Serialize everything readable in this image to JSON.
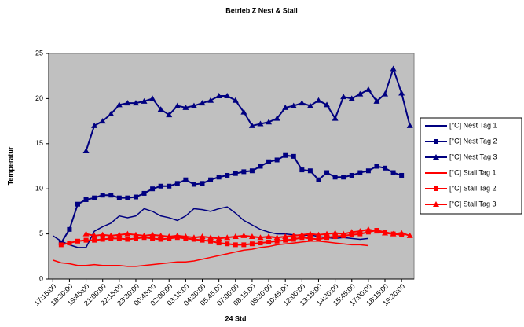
{
  "chart_data": {
    "type": "line",
    "title": "Betrieb Z Nest & Stall",
    "xlabel": "24 Std",
    "ylabel": "Temperatur",
    "categories": [
      "17:15:00",
      null,
      "18:30:00",
      null,
      "19:45:00",
      null,
      "21:00:00",
      null,
      "22:15:00",
      null,
      "23:30:00",
      null,
      "00:45:00",
      null,
      "02:00:00",
      null,
      "03:15:00",
      null,
      "04:30:00",
      null,
      "05:45:00",
      null,
      "07:00:00",
      null,
      "08:15:00",
      null,
      "09:30:00",
      null,
      "10:45:00",
      null,
      "12:00:00",
      null,
      "13:15:00",
      null,
      "14:30:00",
      null,
      "15:45:00",
      null,
      "17:00:00",
      null,
      "18:15:00",
      null,
      "19:30:00",
      null
    ],
    "ylim": [
      0,
      25
    ],
    "yticks": [
      0,
      5,
      10,
      15,
      20,
      25
    ],
    "grid": false,
    "legend": "right",
    "series": [
      {
        "name": "[°C] Nest Tag 1",
        "color": "#000080",
        "marker": "none",
        "values": [
          4.8,
          4.2,
          3.8,
          3.5,
          3.5,
          5.3,
          5.8,
          6.2,
          7.0,
          6.8,
          7.0,
          7.8,
          7.5,
          7.0,
          6.8,
          6.5,
          7.0,
          7.8,
          7.7,
          7.5,
          7.8,
          8.0,
          7.3,
          6.5,
          6.0,
          5.5,
          5.2,
          5.0,
          5.0,
          4.9,
          4.8,
          4.9,
          4.7,
          4.6,
          4.5,
          4.6,
          4.5,
          4.4,
          4.5,
          null,
          null,
          null,
          null,
          null
        ]
      },
      {
        "name": "[°C] Nest Tag 2",
        "color": "#000080",
        "marker": "square",
        "values": [
          null,
          4.0,
          5.5,
          8.3,
          8.8,
          9.0,
          9.3,
          9.3,
          9.0,
          9.0,
          9.1,
          9.5,
          10.0,
          10.3,
          10.3,
          10.6,
          11.0,
          10.5,
          10.6,
          11.0,
          11.3,
          11.5,
          11.7,
          11.9,
          12.0,
          12.5,
          13.0,
          13.2,
          13.7,
          13.6,
          12.1,
          12.0,
          11.0,
          11.8,
          11.3,
          11.3,
          11.5,
          11.8,
          12.0,
          12.5,
          12.3,
          11.8,
          11.5,
          null
        ]
      },
      {
        "name": "[°C] Nest Tag 3",
        "color": "#000080",
        "marker": "triangle",
        "values": [
          null,
          null,
          null,
          null,
          14.2,
          17.0,
          17.5,
          18.3,
          19.3,
          19.5,
          19.5,
          19.7,
          20.0,
          18.8,
          18.2,
          19.2,
          19.0,
          19.2,
          19.5,
          19.8,
          20.3,
          20.3,
          19.8,
          18.5,
          17.0,
          17.2,
          17.4,
          17.8,
          19.0,
          19.2,
          19.5,
          19.2,
          19.8,
          19.3,
          17.8,
          20.2,
          20.0,
          20.5,
          21.0,
          19.7,
          20.5,
          23.3,
          20.6,
          17.0
        ]
      },
      {
        "name": "[°C] Stall Tag 1",
        "color": "#ff0000",
        "marker": "none",
        "values": [
          2.1,
          1.8,
          1.7,
          1.5,
          1.5,
          1.6,
          1.5,
          1.5,
          1.5,
          1.4,
          1.4,
          1.5,
          1.6,
          1.7,
          1.8,
          1.9,
          1.9,
          2.0,
          2.2,
          2.4,
          2.6,
          2.8,
          3.0,
          3.2,
          3.3,
          3.5,
          3.6,
          3.8,
          3.9,
          4.0,
          4.1,
          4.2,
          4.2,
          4.1,
          4.0,
          3.9,
          3.8,
          3.8,
          3.7,
          null,
          null,
          null,
          null,
          null
        ]
      },
      {
        "name": "[°C] Stall Tag 2",
        "color": "#ff0000",
        "marker": "square",
        "values": [
          null,
          3.8,
          4.0,
          4.2,
          4.3,
          4.3,
          4.4,
          4.5,
          4.5,
          4.4,
          4.5,
          4.6,
          4.5,
          4.4,
          4.5,
          4.6,
          4.5,
          4.4,
          4.3,
          4.2,
          4.0,
          3.9,
          3.8,
          3.8,
          3.9,
          4.0,
          4.1,
          4.2,
          4.3,
          4.4,
          4.6,
          4.5,
          4.4,
          4.6,
          4.7,
          4.8,
          4.9,
          5.0,
          5.2,
          5.4,
          5.2,
          5.0,
          4.9,
          null
        ]
      },
      {
        "name": "[°C] Stall Tag 3",
        "color": "#ff0000",
        "marker": "triangle",
        "values": [
          null,
          null,
          null,
          null,
          5.0,
          4.8,
          4.9,
          4.8,
          4.9,
          5.0,
          4.9,
          4.8,
          4.9,
          4.8,
          4.7,
          4.8,
          4.7,
          4.6,
          4.7,
          4.6,
          4.5,
          4.6,
          4.7,
          4.8,
          4.7,
          4.6,
          4.7,
          4.6,
          4.7,
          4.8,
          4.9,
          5.0,
          4.9,
          5.0,
          5.1,
          5.0,
          5.2,
          5.3,
          5.5,
          5.3,
          5.1,
          5.0,
          5.1,
          4.8
        ]
      }
    ]
  }
}
